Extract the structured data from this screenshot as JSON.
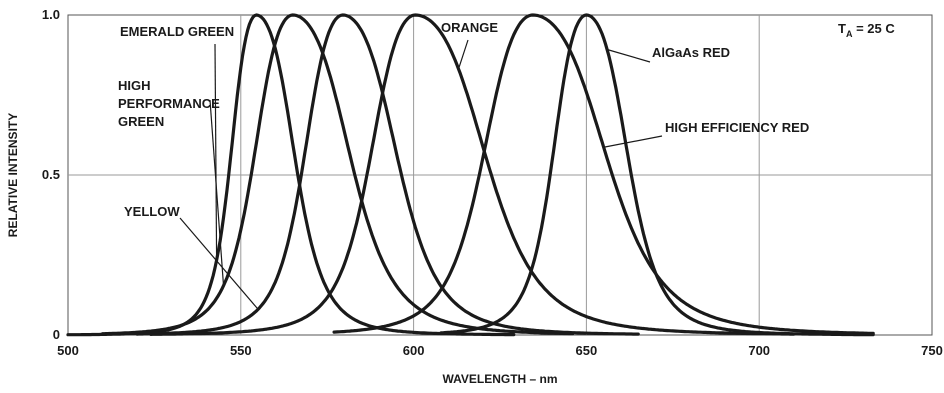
{
  "chart_data": {
    "type": "line",
    "xlabel": "WAVELENGTH – nm",
    "ylabel": "RELATIVE INTENSITY",
    "xlim": [
      500,
      750
    ],
    "ylim": [
      0,
      1.0
    ],
    "grid": true,
    "xticks": [
      500,
      550,
      600,
      650,
      700,
      750
    ],
    "yticks": [
      0,
      0.5,
      1.0
    ],
    "xtick_labels": [
      "500",
      "550",
      "600",
      "650",
      "700",
      "750"
    ],
    "ytick_labels": [
      "0",
      "0.5",
      "1.0"
    ],
    "condition_label": {
      "main": "T",
      "sub": "A",
      "rest": " = 25 C"
    },
    "series": [
      {
        "name": "EMERALD GREEN",
        "peak": 554.5,
        "w_left": 8,
        "w_right": 12,
        "range": [
          500,
          629
        ]
      },
      {
        "name": "HIGH PERFORMANCE GREEN",
        "peak": 565,
        "w_left": 12,
        "w_right": 18,
        "range": [
          510,
          646
        ]
      },
      {
        "name": "YELLOW",
        "peak": 579.5,
        "w_left": 12,
        "w_right": 17,
        "range": [
          520,
          665
        ]
      },
      {
        "name": "ORANGE",
        "peak": 600.5,
        "w_left": 14,
        "w_right": 22,
        "range": [
          524,
          710
        ]
      },
      {
        "name": "HIGH EFFICIENCY RED",
        "peak": 634.5,
        "w_left": 15.5,
        "w_right": 23,
        "range": [
          577,
          733
        ]
      },
      {
        "name": "AlGaAs RED",
        "peak": 650,
        "w_left": 10.5,
        "w_right": 13,
        "range": [
          608,
          733
        ]
      }
    ],
    "annotations": [
      {
        "lines": [
          "EMERALD GREEN"
        ],
        "target": "EMERALD GREEN"
      },
      {
        "lines": [
          "HIGH",
          "PERFORMANCE",
          "GREEN"
        ],
        "target": "HIGH PERFORMANCE GREEN"
      },
      {
        "lines": [
          "YELLOW"
        ],
        "target": "YELLOW"
      },
      {
        "lines": [
          "ORANGE"
        ],
        "target": "ORANGE"
      },
      {
        "lines": [
          "AlGaAs RED"
        ],
        "target": "AlGaAs RED"
      },
      {
        "lines": [
          "HIGH EFFICIENCY RED"
        ],
        "target": "HIGH EFFICIENCY RED"
      }
    ],
    "line_color": "#1a1a1a",
    "grid_color": "#9a9a9a"
  }
}
